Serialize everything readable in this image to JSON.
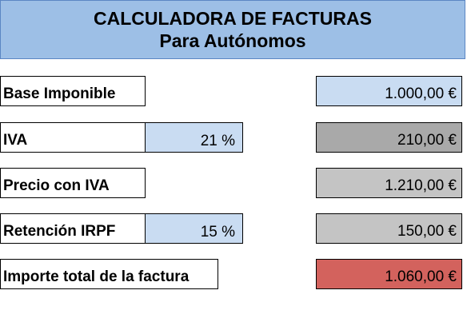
{
  "header": {
    "title": "CALCULADORA DE FACTURAS",
    "subtitle": "Para Autónomos"
  },
  "rows": {
    "base": {
      "label": "Base Imponible",
      "value": "1.000,00 €"
    },
    "iva": {
      "label": "IVA",
      "rate": "21 %",
      "value": "210,00 €"
    },
    "precio": {
      "label": "Precio con IVA",
      "value": "1.210,00 €"
    },
    "irpf": {
      "label": "Retención IRPF",
      "rate": "15 %",
      "value": "150,00 €"
    },
    "total": {
      "label": "Importe total de la factura",
      "value": "1.060,00 €"
    }
  },
  "colors": {
    "header_bg": "#9dbfe6",
    "input_bg": "#c9dcf2",
    "iva_value_bg": "#a9a9a9",
    "computed_bg": "#c4c4c4",
    "total_bg": "#d3625d"
  }
}
